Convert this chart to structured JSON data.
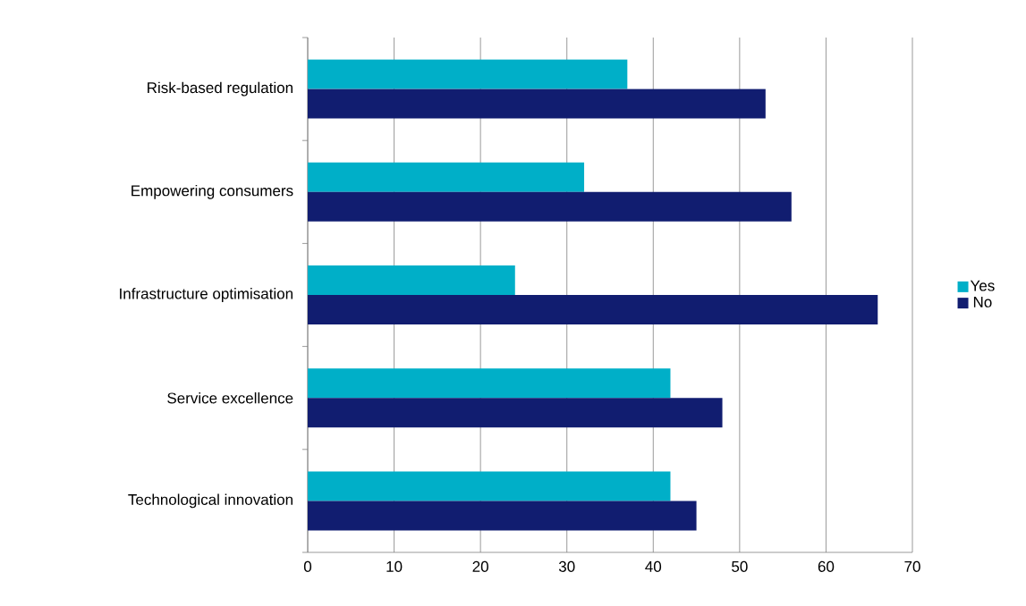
{
  "chart_data": {
    "type": "bar",
    "orientation": "horizontal",
    "categories": [
      "Risk-based regulation",
      "Empowering consumers",
      "Infrastructure optimisation",
      "Service excellence",
      "Technological innovation"
    ],
    "series": [
      {
        "name": "Yes",
        "color": "#00afc8",
        "values": [
          37,
          32,
          24,
          42,
          42
        ]
      },
      {
        "name": "No",
        "color": "#111d70",
        "values": [
          53,
          56,
          66,
          48,
          45
        ]
      }
    ],
    "xlim": [
      0,
      70
    ],
    "xticks": [
      0,
      10,
      20,
      30,
      40,
      50,
      60,
      70
    ],
    "grid": "x",
    "legend": "right"
  }
}
